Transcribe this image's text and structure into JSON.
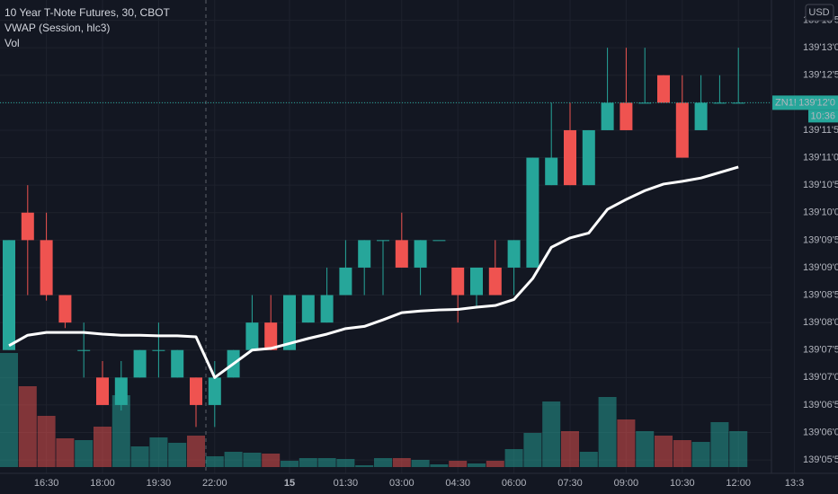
{
  "chart_data": {
    "type": "candlestick",
    "title": "10 Year T-Note Futures, 30, CBOT",
    "currency": "USD",
    "symbol": "ZN1!",
    "last_price": {
      "value": 139.375,
      "label": "139'12'0"
    },
    "countdown": "10:36",
    "up_color": "#26a69a",
    "down_color": "#ef5350",
    "grid": true,
    "categories": [
      null,
      null,
      "16:30",
      null,
      null,
      "18:00",
      null,
      null,
      "19:30",
      null,
      null,
      "22:00",
      null,
      null,
      null,
      "15",
      null,
      null,
      "01:30",
      null,
      null,
      "03:00",
      null,
      null,
      "04:30",
      null,
      null,
      "06:00",
      null,
      null,
      "07:30",
      null,
      null,
      "09:00",
      null,
      null,
      "10:30",
      null,
      null,
      "12:00",
      null,
      null,
      "13:3"
    ],
    "ylim": [
      139.1653,
      139.4334
    ],
    "yticks": [
      {
        "value": 139.171875,
        "label": "139'05'5"
      },
      {
        "value": 139.1875,
        "label": "139'06'0"
      },
      {
        "value": 139.203125,
        "label": "139'06'5"
      },
      {
        "value": 139.21875,
        "label": "139'07'0"
      },
      {
        "value": 139.234375,
        "label": "139'07'5"
      },
      {
        "value": 139.25,
        "label": "139'08'0"
      },
      {
        "value": 139.265625,
        "label": "139'08'5"
      },
      {
        "value": 139.28125,
        "label": "139'09'0"
      },
      {
        "value": 139.296875,
        "label": "139'09'5"
      },
      {
        "value": 139.3125,
        "label": "139'10'0"
      },
      {
        "value": 139.328125,
        "label": "139'10'5"
      },
      {
        "value": 139.34375,
        "label": "139'11'0"
      },
      {
        "value": 139.359375,
        "label": "139'11'5"
      },
      {
        "value": 139.375,
        "label": "139'12'0"
      },
      {
        "value": 139.390625,
        "label": "139'12'5"
      },
      {
        "value": 139.40625,
        "label": "139'13'0"
      },
      {
        "value": 139.421875,
        "label": "139'13'5"
      }
    ],
    "open": [
      139.234375,
      139.3125,
      139.296875,
      139.265625,
      139.234375,
      139.21875,
      139.203125,
      139.21875,
      139.234375,
      139.21875,
      139.21875,
      139.203125,
      139.21875,
      139.234375,
      139.25,
      139.234375,
      139.25,
      139.25,
      139.265625,
      139.28125,
      139.296875,
      139.296875,
      139.28125,
      139.296875,
      139.28125,
      139.265625,
      139.28125,
      139.28125,
      139.28125,
      139.328125,
      139.359375,
      139.328125,
      139.359375,
      139.375,
      139.375,
      139.390625,
      139.375,
      139.359375,
      139.375,
      139.375,
      null,
      null,
      null
    ],
    "high": [
      139.296875,
      139.328125,
      139.3125,
      139.265625,
      139.25,
      139.228125,
      139.228125,
      139.234375,
      139.25,
      139.234375,
      139.21875,
      139.228125,
      139.234375,
      139.265625,
      139.265625,
      139.265625,
      139.265625,
      139.28125,
      139.296875,
      139.296875,
      139.296875,
      139.3125,
      139.296875,
      139.296875,
      139.28125,
      139.28125,
      139.296875,
      139.296875,
      139.34375,
      139.375,
      139.375,
      139.359375,
      139.40625,
      139.40625,
      139.40625,
      139.390625,
      139.390625,
      139.390625,
      139.390625,
      139.40625,
      null,
      null,
      null
    ],
    "low": [
      139.234375,
      139.265625,
      139.2625,
      139.246875,
      139.21875,
      139.203125,
      139.2,
      139.21875,
      139.21875,
      139.21875,
      139.190625,
      139.190625,
      139.21875,
      139.234375,
      139.234375,
      139.234375,
      139.25,
      139.25,
      139.265625,
      139.265625,
      139.265625,
      139.28125,
      139.265625,
      139.296875,
      139.25,
      139.259375,
      139.265625,
      139.265625,
      139.28125,
      139.328125,
      139.328125,
      139.328125,
      139.359375,
      139.359375,
      139.375,
      139.375,
      139.34375,
      139.359375,
      139.375,
      139.375,
      null,
      null,
      null
    ],
    "close": [
      139.296875,
      139.296875,
      139.265625,
      139.25,
      139.234375,
      139.203125,
      139.21875,
      139.234375,
      139.234375,
      139.234375,
      139.203125,
      139.21875,
      139.234375,
      139.25,
      139.234375,
      139.265625,
      139.265625,
      139.265625,
      139.28125,
      139.296875,
      139.296875,
      139.28125,
      139.296875,
      139.296875,
      139.265625,
      139.28125,
      139.265625,
      139.296875,
      139.34375,
      139.34375,
      139.328125,
      139.359375,
      139.375,
      139.359375,
      139.375,
      139.375,
      139.34375,
      139.375,
      139.375,
      139.375,
      null,
      null,
      null
    ],
    "series": [
      {
        "name": "VWAP (Session, hlc3)",
        "color": "#ffffff",
        "values": [
          139.236875,
          139.242813,
          139.244375,
          139.244375,
          139.244375,
          139.243438,
          139.242813,
          139.242813,
          139.2425,
          139.2425,
          139.241875,
          139.21875,
          139.226563,
          139.234375,
          139.235313,
          139.238125,
          139.240938,
          139.243438,
          139.246563,
          139.247813,
          139.251563,
          139.255625,
          139.256563,
          139.257188,
          139.2575,
          139.25875,
          139.259688,
          139.263125,
          139.275,
          139.292813,
          139.298125,
          139.300938,
          139.314375,
          139.32,
          139.325,
          139.32875,
          139.330313,
          139.332188,
          139.335313,
          139.338438,
          null,
          null,
          null
        ]
      },
      {
        "name": "Vol",
        "values": [
          127,
          90,
          57,
          32,
          30,
          45,
          80,
          23,
          33,
          27,
          35,
          12,
          17,
          16,
          15,
          7,
          10,
          10,
          9,
          2,
          10,
          10,
          8,
          3,
          7,
          4,
          7,
          20,
          38,
          73,
          40,
          17,
          78,
          53,
          40,
          35,
          30,
          28,
          50,
          40,
          null,
          null,
          null
        ]
      }
    ]
  }
}
